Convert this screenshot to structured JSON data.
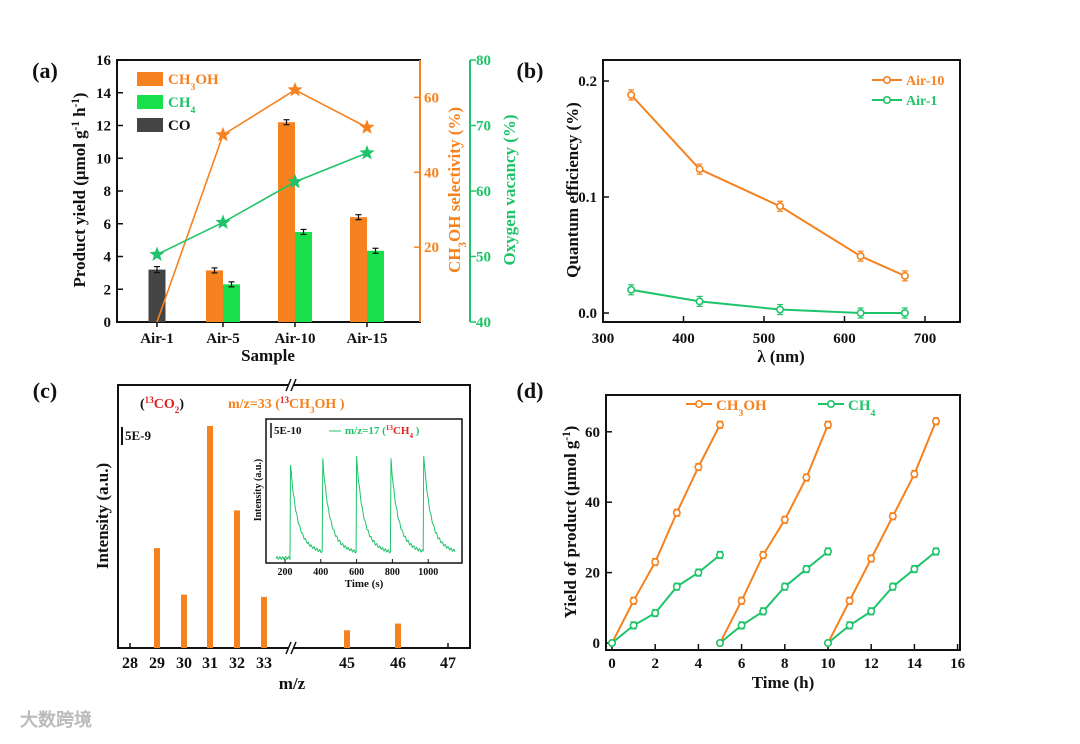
{
  "watermark": "大数跨境",
  "colors": {
    "orange": "#f5821f",
    "green": "#1fc46a",
    "green_bar": "#18e04a",
    "co": "#444444",
    "red": "#e02020"
  },
  "chart_data": [
    {
      "panel": "(a)",
      "type": "bar",
      "categories": [
        "Air-1",
        "Air-5",
        "Air-10",
        "Air-15"
      ],
      "xlabel": "Sample",
      "ylabel": "Product yield (μmol g-1 h-1)",
      "ylim": [
        0,
        16
      ],
      "yticks": [
        0,
        2,
        4,
        6,
        8,
        10,
        12,
        14,
        16
      ],
      "series": [
        {
          "name": "CH3OH",
          "values": [
            null,
            3.15,
            12.2,
            6.4
          ]
        },
        {
          "name": "CH4",
          "values": [
            null,
            2.3,
            5.5,
            4.35
          ]
        },
        {
          "name": "CO",
          "values": [
            3.2,
            null,
            null,
            null
          ]
        }
      ],
      "legend": [
        "CH3OH",
        "CH4",
        "CO"
      ],
      "right_axes": [
        {
          "label": "CH3OH selectivity (%)",
          "ylim": [
            0,
            70
          ],
          "yticks": [
            20,
            40,
            60
          ],
          "values": [
            0,
            50,
            62,
            52
          ]
        },
        {
          "label": "Oxygen vacancy (%)",
          "ylim": [
            40,
            80
          ],
          "yticks": [
            40,
            50,
            60,
            70,
            80
          ],
          "values": [
            50.3,
            55.2,
            61.4,
            65.8
          ]
        }
      ]
    },
    {
      "panel": "(b)",
      "type": "line",
      "xlabel": "λ (nm)",
      "ylabel": "Quantum efficiency (%)",
      "xlim": [
        300,
        720
      ],
      "xticks": [
        300,
        400,
        500,
        600,
        700
      ],
      "yticks": [
        "0.0",
        "0.1",
        "0.2"
      ],
      "x": [
        335,
        420,
        520,
        620,
        675
      ],
      "series": [
        {
          "name": "Air-10",
          "values": [
            0.188,
            0.124,
            0.092,
            0.049,
            0.032
          ]
        },
        {
          "name": "Air-1",
          "values": [
            0.02,
            0.01,
            0.003,
            0.0,
            0.0
          ]
        }
      ],
      "legend": "top-right"
    },
    {
      "panel": "(c)",
      "type": "bar",
      "xlabel": "m/z",
      "ylabel": "Intensity (a.u.)",
      "xticks": [
        "28",
        "29",
        "30",
        "31",
        "32",
        "33",
        "45",
        "46",
        "47"
      ],
      "categories": [
        "29",
        "30",
        "31",
        "32",
        "33",
        "45",
        "46"
      ],
      "values": [
        0.45,
        0.24,
        1.0,
        0.62,
        0.23,
        0.08,
        0.11
      ],
      "annotations": {
        "co2_open": "(",
        "co2_sup": "13",
        "co2": "CO",
        "co2_sub": "2",
        "co2_close": ")",
        "mz33": "m/z=33 (",
        "mz33_sup": "13",
        "mz33_mol": "CH",
        "mz33_sub": "3",
        "mz33_end": "OH )",
        "scale": "5E-9"
      },
      "inset": {
        "type": "line",
        "xlabel": "Time (s)",
        "ylabel": "Intensity (a.u.)",
        "xticks": [
          200,
          400,
          600,
          800,
          1000
        ],
        "xlim": [
          150,
          1150
        ],
        "scale": "5E-10",
        "legend": "m/z=17 (",
        "legend_sup": "13",
        "legend_mol": "CH",
        "legend_sub": "4",
        "legend_end": ")",
        "peaks": [
          230,
          410,
          600,
          790,
          975
        ],
        "peak_heights": [
          0.85,
          0.9,
          0.9,
          0.92,
          0.92
        ]
      }
    },
    {
      "panel": "(d)",
      "type": "line",
      "xlabel": "Time (h)",
      "ylabel": "Yield of product (μmol g-1)",
      "xlim": [
        0,
        16
      ],
      "ylim": [
        -2,
        72
      ],
      "xticks": [
        0,
        2,
        4,
        6,
        8,
        10,
        12,
        14,
        16
      ],
      "yticks": [
        0,
        20,
        40,
        60
      ],
      "series": [
        {
          "name": "CH3OH",
          "cycles": [
            [
              [
                0,
                0
              ],
              [
                1,
                12
              ],
              [
                2,
                23
              ],
              [
                3,
                37
              ],
              [
                4,
                50
              ],
              [
                5,
                62
              ]
            ],
            [
              [
                5,
                0
              ],
              [
                6,
                12
              ],
              [
                7,
                25
              ],
              [
                8,
                35
              ],
              [
                9,
                47
              ],
              [
                10,
                62
              ]
            ],
            [
              [
                10,
                0
              ],
              [
                11,
                12
              ],
              [
                12,
                24
              ],
              [
                13,
                36
              ],
              [
                14,
                48
              ],
              [
                15,
                63
              ]
            ]
          ]
        },
        {
          "name": "CH4",
          "cycles": [
            [
              [
                0,
                0
              ],
              [
                1,
                5
              ],
              [
                2,
                8.5
              ],
              [
                3,
                16
              ],
              [
                4,
                20
              ],
              [
                5,
                25
              ]
            ],
            [
              [
                5,
                0
              ],
              [
                6,
                5
              ],
              [
                7,
                9
              ],
              [
                8,
                16
              ],
              [
                9,
                21
              ],
              [
                10,
                26
              ]
            ],
            [
              [
                10,
                0
              ],
              [
                11,
                5
              ],
              [
                12,
                9
              ],
              [
                13,
                16
              ],
              [
                14,
                21
              ],
              [
                15,
                26
              ]
            ]
          ]
        }
      ],
      "legend": "top"
    }
  ]
}
